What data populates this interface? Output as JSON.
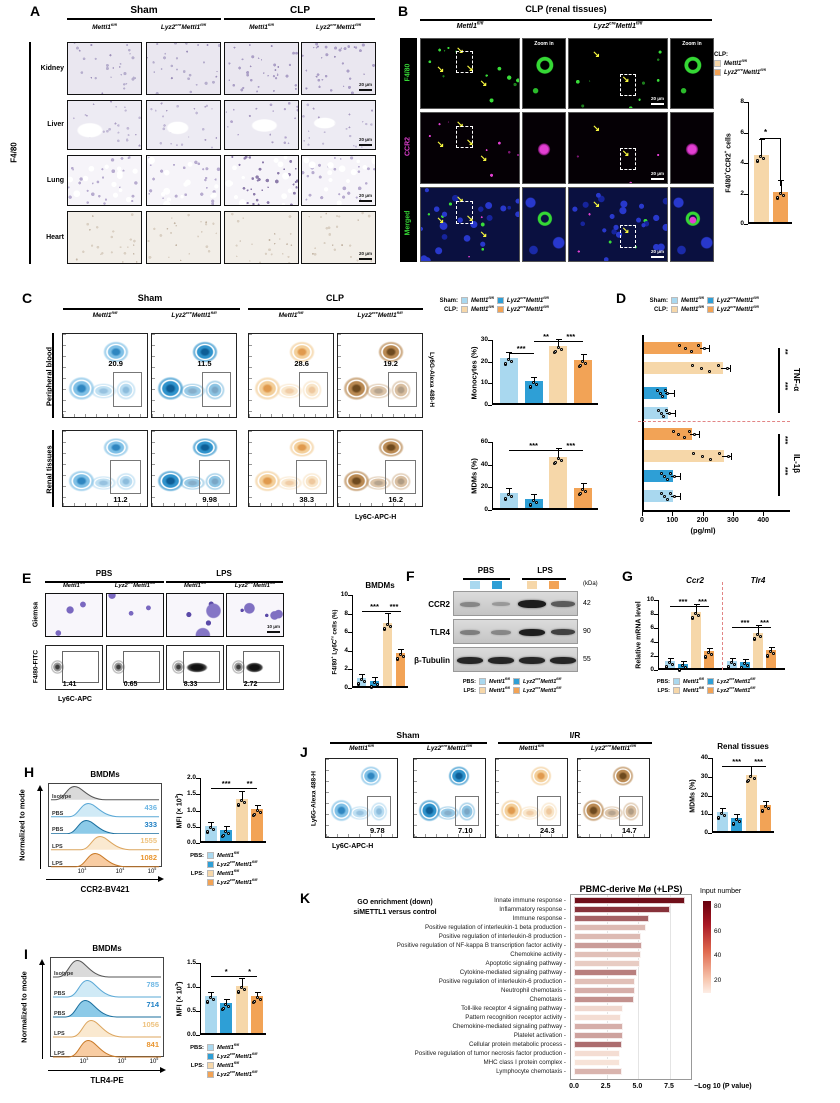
{
  "colors": {
    "sham_fl": "#a9d8ef",
    "sham_cre": "#2e9fd6",
    "clp_fl": "#f6d7a9",
    "clp_cre": "#f2a356",
    "green": "#36d836",
    "magenta": "#e03fd0",
    "dapi": "#2838cc",
    "isotype": "#9a9a9a",
    "sep_red": "#e28585"
  },
  "genotypes": {
    "fl": "Mettl1^{fl/fl}",
    "cre": "Lyz2^{cre}Mettl1^{fl/fl}"
  },
  "panelA": {
    "label": "A",
    "groups": [
      "Sham",
      "CLP"
    ],
    "side_label": "F4/80",
    "rows": [
      "Kidney",
      "Liver",
      "Lung",
      "Heart"
    ],
    "scale": "20 μm"
  },
  "panelB": {
    "label": "B",
    "title": "CLP (renal tissues)",
    "zoom_label": "Zoom in",
    "row_labels": [
      "F4/80",
      "CCR2",
      "Merged"
    ],
    "scale": "20 μm",
    "legend_title": "CLP:",
    "chart": {
      "ylabel": "F4/80^{+}CCR2^{+} cells",
      "ymax": 8,
      "ticks": [
        0,
        2,
        4,
        6,
        8
      ],
      "values": [
        4.4,
        2.0
      ],
      "sig": "*"
    }
  },
  "panelC": {
    "label": "C",
    "groups": [
      "Sham",
      "CLP"
    ],
    "rows": [
      "Peripheral blood",
      "Renal tissues"
    ],
    "values": [
      [
        "20.9",
        "11.5",
        "28.6",
        "19.2"
      ],
      [
        "11.2",
        "9.98",
        "38.3",
        "16.2"
      ]
    ],
    "yaxis": "Ly6G-Alexa 488-H",
    "xaxis": "Ly6C-APC-H",
    "legend_rows": [
      "Sham:",
      "CLP:"
    ],
    "monocytes": {
      "ylabel": "Monocytes (%)",
      "ymax": 30,
      "ticks": [
        0,
        10,
        20,
        30
      ],
      "values": [
        21,
        10,
        26.5,
        20
      ],
      "sig": [
        [
          1,
          2,
          "***",
          13
        ],
        [
          2,
          3,
          "**",
          1
        ],
        [
          3,
          4,
          "***",
          1
        ]
      ]
    },
    "mdms": {
      "ylabel": "MDMs (%)",
      "ymax": 60,
      "ticks": [
        0,
        20,
        40,
        60
      ],
      "values": [
        13,
        8,
        45,
        18
      ],
      "sig": [
        [
          1,
          3,
          "***",
          8
        ],
        [
          3,
          4,
          "***",
          8
        ]
      ]
    }
  },
  "panelD": {
    "label": "D",
    "legend_rows": [
      "Sham:",
      "CLP:"
    ],
    "xlabel": "(pg/ml)",
    "xticks": [
      0,
      100,
      200,
      300,
      400
    ],
    "groups": [
      {
        "name": "TNF-α",
        "values": [
          190,
          260,
          75,
          80
        ],
        "sig": [
          "**",
          "***"
        ]
      },
      {
        "name": "IL-1β",
        "values": [
          160,
          265,
          95,
          95
        ],
        "sig": [
          "***",
          "***"
        ]
      }
    ],
    "series_order": [
      "CLP Lyz2creMettl1fl/fl",
      "CLP Mettl1fl/fl",
      "Sham Lyz2creMettl1fl/fl",
      "Sham Mettl1fl/fl"
    ]
  },
  "panelE": {
    "label": "E",
    "groups": [
      "PBS",
      "LPS"
    ],
    "row_labels": [
      "Giemsa",
      "F4/80-FITC"
    ],
    "xaxis": "Ly6C-APC",
    "values": [
      "1.41",
      "0.65",
      "8.33",
      "2.72"
    ],
    "scale": "10 μm",
    "chart": {
      "title": "BMDMs",
      "ylabel": "F4/80^{+} Ly6C^{hi} cells (%)",
      "ymax": 10,
      "ticks": [
        0,
        2,
        4,
        6,
        8,
        10
      ],
      "values": [
        0.9,
        0.5,
        6.8,
        3.6
      ],
      "sig": [
        [
          1,
          3,
          "***",
          16
        ],
        [
          3,
          4,
          "***",
          16
        ]
      ]
    }
  },
  "panelF": {
    "label": "F",
    "groups": [
      "PBS",
      "LPS"
    ],
    "kda_header": "(kDa)",
    "rows": [
      {
        "protein": "CCR2",
        "kda": "42"
      },
      {
        "protein": "TLR4",
        "kda": "90"
      },
      {
        "protein": "β-Tubulin",
        "kda": "55"
      }
    ],
    "legend_rows": [
      "PBS:",
      "LPS:"
    ]
  },
  "panelG": {
    "label": "G",
    "gene_titles": [
      "Ccr2",
      "Tlr4"
    ],
    "ylabel": "Relative mRNA level",
    "ymax": 10,
    "ticks": [
      0,
      2,
      4,
      6,
      8,
      10
    ],
    "values": [
      1,
      0.6,
      8,
      2.5,
      1,
      0.8,
      5,
      2.6
    ],
    "sig": [
      [
        1,
        3,
        "***",
        6
      ],
      [
        3,
        4,
        "***",
        6
      ],
      [
        5,
        7,
        "***",
        27
      ],
      [
        7,
        8,
        "***",
        27
      ]
    ],
    "legend_rows": [
      "PBS:",
      "LPS:"
    ]
  },
  "panelH": {
    "label": "H",
    "title": "BMDMs",
    "ylabel": "Normalized to mode",
    "xlabel": "CCR2-BV421",
    "xticks": [
      "10^{3}",
      "10^{4}",
      "10^{5}"
    ],
    "rows": [
      {
        "label": "Isotype",
        "value": ""
      },
      {
        "label": "PBS",
        "value": "436"
      },
      {
        "label": "PBS",
        "value": "333"
      },
      {
        "label": "LPS",
        "value": "1555"
      },
      {
        "label": "LPS",
        "value": "1082"
      }
    ],
    "mfi": {
      "ylabel": "MFI (× 10^{3})",
      "ymax": 2,
      "ticks": [
        0,
        0.5,
        1,
        1.5,
        2
      ],
      "values": [
        0.45,
        0.35,
        1.3,
        1.0
      ],
      "sig": [
        [
          1,
          3,
          "***",
          10
        ],
        [
          3,
          4,
          "**",
          10
        ]
      ]
    },
    "legend_rows": [
      "PBS:",
      "LPS:"
    ]
  },
  "panelI": {
    "label": "I",
    "title": "BMDMs",
    "ylabel": "Normalized to mode",
    "xlabel": "TLR4-PE",
    "xticks": [
      "10^{3}",
      "10^{4}",
      "10^{5}"
    ],
    "rows": [
      {
        "label": "Isotype",
        "value": ""
      },
      {
        "label": "PBS",
        "value": "785"
      },
      {
        "label": "PBS",
        "value": "714"
      },
      {
        "label": "LPS",
        "value": "1056"
      },
      {
        "label": "LPS",
        "value": "841"
      }
    ],
    "mfi": {
      "ylabel": "MFI (× 10^{3})",
      "ymax": 1.5,
      "ticks": [
        0,
        0.5,
        1,
        1.5
      ],
      "values": [
        0.78,
        0.63,
        0.98,
        0.77
      ],
      "sig": [
        [
          1,
          3,
          "*",
          13
        ],
        [
          3,
          4,
          "*",
          13
        ]
      ]
    },
    "legend_rows": [
      "PBS:",
      "LPS:"
    ]
  },
  "panelJ": {
    "label": "J",
    "groups": [
      "Sham",
      "I/R"
    ],
    "yaxis": "Ly6G-Alexa 488-H",
    "xaxis": "Ly6C-APC-H",
    "values": [
      "9.78",
      "7.10",
      "24.3",
      "14.7"
    ],
    "chart": {
      "title": "Renal tissues",
      "ylabel": "MDMs (%)",
      "ymax": 40,
      "ticks": [
        0,
        10,
        20,
        30,
        40
      ],
      "values": [
        10,
        7,
        30,
        14
      ],
      "sig": [
        [
          1,
          3,
          "***",
          8
        ],
        [
          3,
          4,
          "***",
          8
        ]
      ]
    }
  },
  "panelK": {
    "label": "K",
    "subtitle": [
      "GO enrichment (down)",
      "siMETTL1 versus control"
    ],
    "title": "PBMC-derive Mø (+LPS)",
    "xlabel": "−Log 10 (P value)",
    "xticks": [
      "0.0",
      "2.5",
      "5.0",
      "7.5"
    ],
    "legend_title": "Input number",
    "legend_ticks": [
      80,
      60,
      40,
      20
    ],
    "terms": [
      "Innate immune response",
      "Inflammatory response",
      "Immune response",
      "Positive regulation of interleukin-1 beta production",
      "Positive regulation of interleukin-8 production",
      "Positive regulation of NF-kappa B transcription factor activity",
      "Chemokine activity",
      "Apoptotic signaling pathway",
      "Cytokine-mediated signaling pathway",
      "Positive regulation of interleukin-6 production",
      "Neutrophil chemotaxis",
      "Chemotaxis",
      "Toll-like receptor 4 signaling pathway",
      "Pattern recognition receptor activity",
      "Chemokine-mediated signaling pathway",
      "Platelet activation",
      "Cellular protein metabolic process",
      "Positive regulation of tumor necrosis factor production",
      "MHC class I protein complex",
      "Lymphocyte chemotaxis"
    ],
    "values": [
      8.75,
      7.6,
      5.9,
      5.65,
      5.3,
      5.35,
      5.3,
      5.2,
      4.95,
      4.85,
      4.8,
      4.7,
      3.9,
      3.7,
      3.9,
      3.85,
      3.8,
      3.65,
      3.6,
      3.75
    ],
    "inputs": [
      80,
      68,
      52,
      22,
      22,
      32,
      20,
      16,
      42,
      20,
      26,
      36,
      12,
      10,
      26,
      30,
      48,
      10,
      8,
      24
    ]
  },
  "chart_data": [
    {
      "id": "B",
      "type": "bar",
      "title": "F4/80+CCR2+ cells (CLP renal)",
      "categories": [
        "Mettl1fl/fl",
        "Lyz2creMettl1fl/fl"
      ],
      "values": [
        4.4,
        2.0
      ],
      "ylim": [
        0,
        8
      ],
      "sig": [
        "*"
      ]
    },
    {
      "id": "C-monocytes",
      "type": "bar",
      "categories": [
        "Sham Mettl1fl/fl",
        "Sham Lyz2creMettl1fl/fl",
        "CLP Mettl1fl/fl",
        "CLP Lyz2creMettl1fl/fl"
      ],
      "values": [
        21,
        10,
        26.5,
        20
      ],
      "ylabel": "Monocytes (%)",
      "ylim": [
        0,
        30
      ]
    },
    {
      "id": "C-MDMs",
      "type": "bar",
      "categories": [
        "Sham Mettl1fl/fl",
        "Sham Lyz2creMettl1fl/fl",
        "CLP Mettl1fl/fl",
        "CLP Lyz2creMettl1fl/fl"
      ],
      "values": [
        13,
        8,
        45,
        18
      ],
      "ylabel": "MDMs (%)",
      "ylim": [
        0,
        60
      ]
    },
    {
      "id": "D",
      "type": "bar-horizontal",
      "groups": [
        "TNF-α",
        "IL-1β"
      ],
      "series": [
        {
          "name": "TNF-α",
          "values": [
            190,
            260,
            75,
            80
          ]
        },
        {
          "name": "IL-1β",
          "values": [
            160,
            265,
            95,
            95
          ]
        }
      ],
      "xlabel": "(pg/ml)",
      "xlim": [
        0,
        400
      ]
    },
    {
      "id": "E",
      "type": "bar",
      "values": [
        0.9,
        0.5,
        6.8,
        3.6
      ],
      "ylabel": "F4/80+ Ly6Chi cells (%)",
      "ylim": [
        0,
        10
      ]
    },
    {
      "id": "G",
      "type": "bar",
      "series": [
        {
          "name": "Ccr2",
          "values": [
            1,
            0.6,
            8,
            2.5
          ]
        },
        {
          "name": "Tlr4",
          "values": [
            1,
            0.8,
            5,
            2.6
          ]
        }
      ],
      "ylabel": "Relative mRNA level",
      "ylim": [
        0,
        10
      ]
    },
    {
      "id": "H-MFI",
      "type": "bar",
      "values": [
        0.45,
        0.35,
        1.3,
        1.0
      ],
      "ylabel": "MFI (×10³)",
      "ylim": [
        0,
        2
      ]
    },
    {
      "id": "I-MFI",
      "type": "bar",
      "values": [
        0.78,
        0.63,
        0.98,
        0.77
      ],
      "ylabel": "MFI (×10³)",
      "ylim": [
        0,
        1.5
      ]
    },
    {
      "id": "J",
      "type": "bar",
      "values": [
        10,
        7,
        30,
        14
      ],
      "ylabel": "MDMs (%)",
      "ylim": [
        0,
        40
      ]
    },
    {
      "id": "K",
      "type": "bar-horizontal",
      "xlabel": "-Log10 P",
      "xlim": [
        0,
        9
      ],
      "categories": [
        "Innate immune response",
        "Inflammatory response",
        "Immune response",
        "Positive regulation of interleukin-1 beta production",
        "Positive regulation of interleukin-8 production",
        "Positive regulation of NF-kappa B transcription factor activity",
        "Chemokine activity",
        "Apoptotic signaling pathway",
        "Cytokine-mediated signaling pathway",
        "Positive regulation of interleukin-6 production",
        "Neutrophil chemotaxis",
        "Chemotaxis",
        "Toll-like receptor 4 signaling pathway",
        "Pattern recognition receptor activity",
        "Chemokine-mediated signaling pathway",
        "Platelet activation",
        "Cellular protein metabolic process",
        "Positive regulation of tumor necrosis factor production",
        "MHC class I protein complex",
        "Lymphocyte chemotaxis"
      ],
      "values": [
        8.75,
        7.6,
        5.9,
        5.65,
        5.3,
        5.35,
        5.3,
        5.2,
        4.95,
        4.85,
        4.8,
        4.7,
        3.9,
        3.7,
        3.9,
        3.85,
        3.8,
        3.65,
        3.6,
        3.75
      ],
      "input_number": [
        80,
        68,
        52,
        22,
        22,
        32,
        20,
        16,
        42,
        20,
        26,
        36,
        12,
        10,
        26,
        30,
        48,
        10,
        8,
        24
      ]
    }
  ]
}
